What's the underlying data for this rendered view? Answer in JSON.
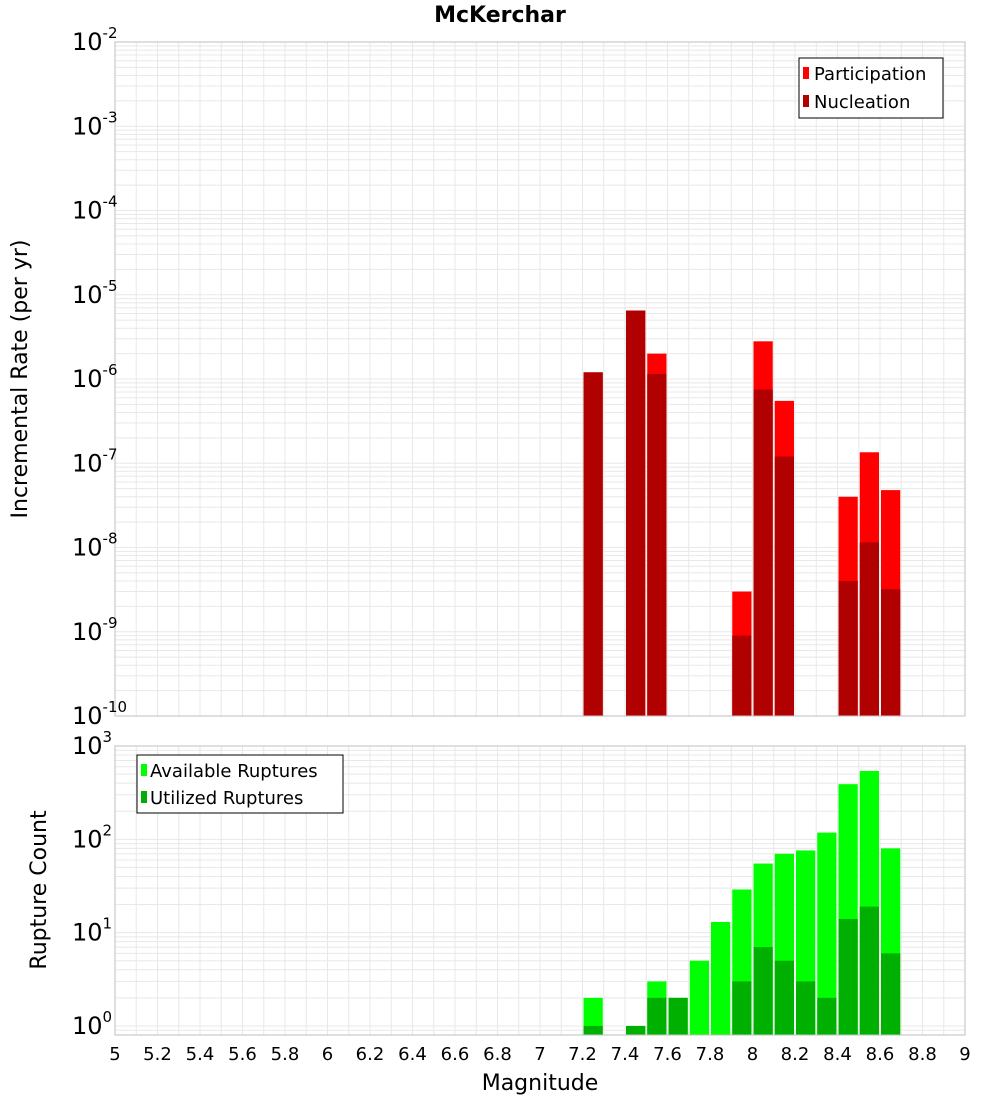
{
  "title": "McKerchar",
  "colors": {
    "participation": "#ff0000",
    "nucleation": "#b00000",
    "available": "#00ff00",
    "utilized": "#00b000",
    "grid": "#e8e8e8",
    "frame": "#bfbfbf"
  },
  "chart_data": [
    {
      "type": "bar",
      "name": "rates",
      "ylabel": "Incremental Rate (per yr)",
      "yscale": "log",
      "ylim": [
        1e-10,
        0.01
      ],
      "xlim": [
        5,
        9
      ],
      "y_ticks": [
        {
          "base": "10",
          "exp": "-2",
          "value": 0.01
        },
        {
          "base": "10",
          "exp": "-3",
          "value": 0.001
        },
        {
          "base": "10",
          "exp": "-4",
          "value": 0.0001
        },
        {
          "base": "10",
          "exp": "-5",
          "value": 1e-05
        },
        {
          "base": "10",
          "exp": "-6",
          "value": 1e-06
        },
        {
          "base": "10",
          "exp": "-7",
          "value": 1e-07
        },
        {
          "base": "10",
          "exp": "-8",
          "value": 1e-08
        },
        {
          "base": "10",
          "exp": "-9",
          "value": 1e-09
        },
        {
          "base": "10",
          "exp": "-10",
          "value": 1e-10
        }
      ],
      "legend": {
        "position": "top-right"
      },
      "series": [
        {
          "name": "Participation",
          "points": [
            {
              "x": 7.25,
              "y": 1.2e-06
            },
            {
              "x": 7.45,
              "y": 6.5e-06
            },
            {
              "x": 7.55,
              "y": 2e-06
            },
            {
              "x": 7.95,
              "y": 3e-09
            },
            {
              "x": 8.05,
              "y": 2.8e-06
            },
            {
              "x": 8.15,
              "y": 5.5e-07
            },
            {
              "x": 8.45,
              "y": 4e-08
            },
            {
              "x": 8.55,
              "y": 1.35e-07
            },
            {
              "x": 8.65,
              "y": 4.8e-08
            }
          ]
        },
        {
          "name": "Nucleation",
          "points": [
            {
              "x": 7.25,
              "y": 1.2e-06
            },
            {
              "x": 7.45,
              "y": 6.5e-06
            },
            {
              "x": 7.55,
              "y": 1.15e-06
            },
            {
              "x": 7.95,
              "y": 9e-10
            },
            {
              "x": 8.05,
              "y": 7.5e-07
            },
            {
              "x": 8.15,
              "y": 1.2e-07
            },
            {
              "x": 8.45,
              "y": 4e-09
            },
            {
              "x": 8.55,
              "y": 1.15e-08
            },
            {
              "x": 8.65,
              "y": 3.2e-09
            }
          ]
        }
      ]
    },
    {
      "type": "bar",
      "name": "counts",
      "xlabel": "Magnitude",
      "ylabel": "Rupture Count",
      "yscale": "log",
      "ylim": [
        0.8,
        1000
      ],
      "xlim": [
        5,
        9
      ],
      "x_ticks": [
        "5",
        "5.2",
        "5.4",
        "5.6",
        "5.8",
        "6",
        "6.2",
        "6.4",
        "6.6",
        "6.8",
        "7",
        "7.2",
        "7.4",
        "7.6",
        "7.8",
        "8",
        "8.2",
        "8.4",
        "8.6",
        "8.8",
        "9"
      ],
      "y_ticks": [
        {
          "base": "10",
          "exp": "3",
          "value": 1000
        },
        {
          "base": "10",
          "exp": "2",
          "value": 100
        },
        {
          "base": "10",
          "exp": "1",
          "value": 10
        },
        {
          "base": "10",
          "exp": "0",
          "value": 1
        }
      ],
      "legend": {
        "position": "top-left"
      },
      "series": [
        {
          "name": "Available Ruptures",
          "points": [
            {
              "x": 7.25,
              "y": 2
            },
            {
              "x": 7.45,
              "y": 1
            },
            {
              "x": 7.55,
              "y": 3
            },
            {
              "x": 7.65,
              "y": 2
            },
            {
              "x": 7.75,
              "y": 5
            },
            {
              "x": 7.85,
              "y": 13
            },
            {
              "x": 7.95,
              "y": 29
            },
            {
              "x": 8.05,
              "y": 55
            },
            {
              "x": 8.15,
              "y": 70
            },
            {
              "x": 8.25,
              "y": 76
            },
            {
              "x": 8.35,
              "y": 118
            },
            {
              "x": 8.45,
              "y": 390
            },
            {
              "x": 8.55,
              "y": 540
            },
            {
              "x": 8.65,
              "y": 80
            }
          ]
        },
        {
          "name": "Utilized Ruptures",
          "points": [
            {
              "x": 7.25,
              "y": 1
            },
            {
              "x": 7.45,
              "y": 1
            },
            {
              "x": 7.55,
              "y": 2
            },
            {
              "x": 7.65,
              "y": 2
            },
            {
              "x": 7.75,
              "y": 0
            },
            {
              "x": 7.85,
              "y": 0
            },
            {
              "x": 7.95,
              "y": 3
            },
            {
              "x": 8.05,
              "y": 7
            },
            {
              "x": 8.15,
              "y": 5
            },
            {
              "x": 8.25,
              "y": 3
            },
            {
              "x": 8.35,
              "y": 2
            },
            {
              "x": 8.45,
              "y": 14
            },
            {
              "x": 8.55,
              "y": 19
            },
            {
              "x": 8.65,
              "y": 6
            }
          ]
        }
      ]
    }
  ]
}
